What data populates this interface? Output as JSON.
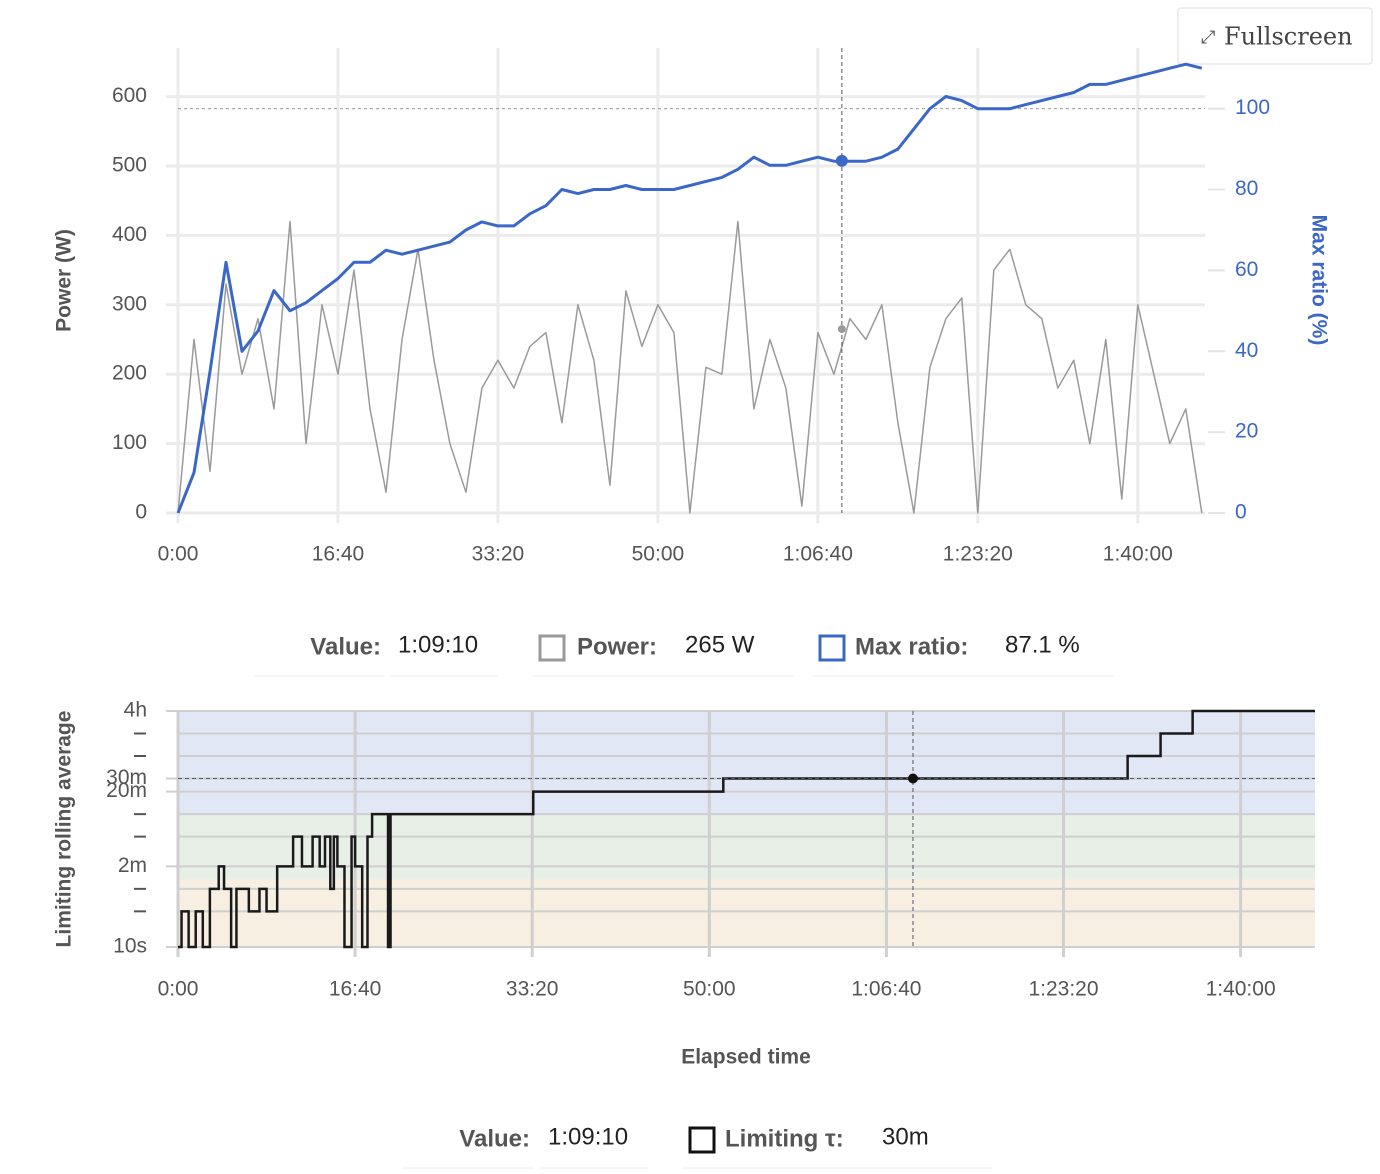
{
  "button": {
    "label": "Fullscreen"
  },
  "chart_data": [
    {
      "type": "line",
      "ylabel": "Power (W)",
      "y2label": "Max ratio (%)",
      "xlim": [
        0,
        6420
      ],
      "xticks": [
        {
          "value": 0,
          "label": "0:00"
        },
        {
          "value": 1000,
          "label": "16:40"
        },
        {
          "value": 2000,
          "label": "33:20"
        },
        {
          "value": 3000,
          "label": "50:00"
        },
        {
          "value": 4000,
          "label": "1:06:40"
        },
        {
          "value": 5000,
          "label": "1:23:20"
        },
        {
          "value": 6000,
          "label": "1:40:00"
        }
      ],
      "ylim": [
        0,
        670
      ],
      "yticks": [
        0,
        100,
        200,
        300,
        400,
        500,
        600
      ],
      "y2lim": [
        0,
        115
      ],
      "y2ticks": [
        0,
        20,
        40,
        60,
        80,
        100
      ],
      "grid": true,
      "reference_y2": 100,
      "x": [
        0,
        100,
        200,
        300,
        400,
        500,
        600,
        700,
        800,
        900,
        1000,
        1100,
        1200,
        1300,
        1400,
        1500,
        1600,
        1700,
        1800,
        1900,
        2000,
        2100,
        2200,
        2300,
        2400,
        2500,
        2600,
        2700,
        2800,
        2900,
        3000,
        3100,
        3200,
        3300,
        3400,
        3500,
        3600,
        3700,
        3800,
        3900,
        4000,
        4100,
        4200,
        4300,
        4400,
        4500,
        4600,
        4700,
        4800,
        4900,
        5000,
        5100,
        5200,
        5300,
        5400,
        5500,
        5600,
        5700,
        5800,
        5900,
        6000,
        6100,
        6200,
        6300,
        6400
      ],
      "series": [
        {
          "name": "Power:",
          "color": "#9a9a9a",
          "cursor_value": 265,
          "cursor_label": "265 W",
          "values": [
            0,
            250,
            60,
            330,
            200,
            280,
            150,
            420,
            100,
            300,
            200,
            350,
            150,
            30,
            250,
            380,
            220,
            100,
            30,
            180,
            220,
            180,
            240,
            260,
            130,
            300,
            220,
            40,
            320,
            240,
            300,
            260,
            0,
            210,
            200,
            420,
            150,
            250,
            180,
            10,
            260,
            200,
            280,
            250,
            300,
            130,
            0,
            210,
            280,
            310,
            0,
            350,
            380,
            300,
            280,
            180,
            220,
            100,
            250,
            20,
            300,
            200,
            100,
            150,
            0
          ]
        },
        {
          "name": "Max ratio:",
          "color": "#3b67c6",
          "axis": "y2",
          "cursor_value": 87.1,
          "cursor_label": "87.1 %",
          "values": [
            0,
            10,
            35,
            62,
            40,
            45,
            55,
            50,
            52,
            55,
            58,
            62,
            62,
            65,
            64,
            65,
            66,
            67,
            70,
            72,
            71,
            71,
            74,
            76,
            80,
            79,
            80,
            80,
            81,
            80,
            80,
            80,
            81,
            82,
            83,
            85,
            88,
            86,
            86,
            87,
            88,
            87,
            87,
            87,
            88,
            90,
            95,
            100,
            103,
            102,
            100,
            100,
            100,
            101,
            102,
            103,
            104,
            106,
            106,
            107,
            108,
            109,
            110,
            111,
            110
          ]
        }
      ],
      "cursor": {
        "label": "Value:",
        "x": 4150,
        "x_label": "1:09:10"
      }
    },
    {
      "type": "step",
      "ylabel": "Limiting rolling average",
      "xlabel": "Elapsed time",
      "xlim": [
        0,
        6420
      ],
      "xticks": [
        {
          "value": 0,
          "label": "0:00"
        },
        {
          "value": 1000,
          "label": "16:40"
        },
        {
          "value": 2000,
          "label": "33:20"
        },
        {
          "value": 3000,
          "label": "50:00"
        },
        {
          "value": 4000,
          "label": "1:06:40"
        },
        {
          "value": 5000,
          "label": "1:23:20"
        },
        {
          "value": 6000,
          "label": "1:40:00"
        }
      ],
      "ylog": true,
      "ylim": [
        10,
        14400
      ],
      "yticks": [
        {
          "value": 10,
          "label": "10s"
        },
        {
          "value": 120,
          "label": "2m"
        },
        {
          "value": 1200,
          "label": "20m"
        },
        {
          "value": 1800,
          "label": "30m"
        },
        {
          "value": 14400,
          "label": "4h"
        }
      ],
      "minor_yticks": [
        30,
        60,
        300,
        600,
        3600,
        7200
      ],
      "grid": true,
      "bands": [
        {
          "from": 10,
          "to": 80,
          "color": "#f8efe3"
        },
        {
          "from": 80,
          "to": 600,
          "color": "#e7efe6"
        },
        {
          "from": 600,
          "to": 14400,
          "color": "#e2e7f5"
        }
      ],
      "x": [
        0,
        20,
        60,
        100,
        140,
        180,
        230,
        260,
        300,
        330,
        400,
        460,
        500,
        560,
        600,
        650,
        700,
        760,
        800,
        830,
        860,
        880,
        900,
        940,
        980,
        1000,
        1040,
        1070,
        1096,
        1186,
        1200,
        2006,
        3079,
        5362,
        5548,
        5729
      ],
      "series": [
        {
          "name": "Limiting τ:",
          "color": "#1a1a1a",
          "cursor_value": 1800,
          "cursor_label": "30m",
          "values": [
            10,
            30,
            10,
            30,
            10,
            60,
            120,
            60,
            10,
            60,
            30,
            60,
            30,
            120,
            120,
            300,
            120,
            300,
            120,
            300,
            60,
            300,
            120,
            10,
            300,
            120,
            10,
            300,
            600,
            10,
            600,
            1200,
            1800,
            3600,
            7200,
            14400
          ]
        }
      ],
      "cursor": {
        "label": "Value:",
        "x": 4150,
        "x_label": "1:09:10"
      }
    }
  ]
}
